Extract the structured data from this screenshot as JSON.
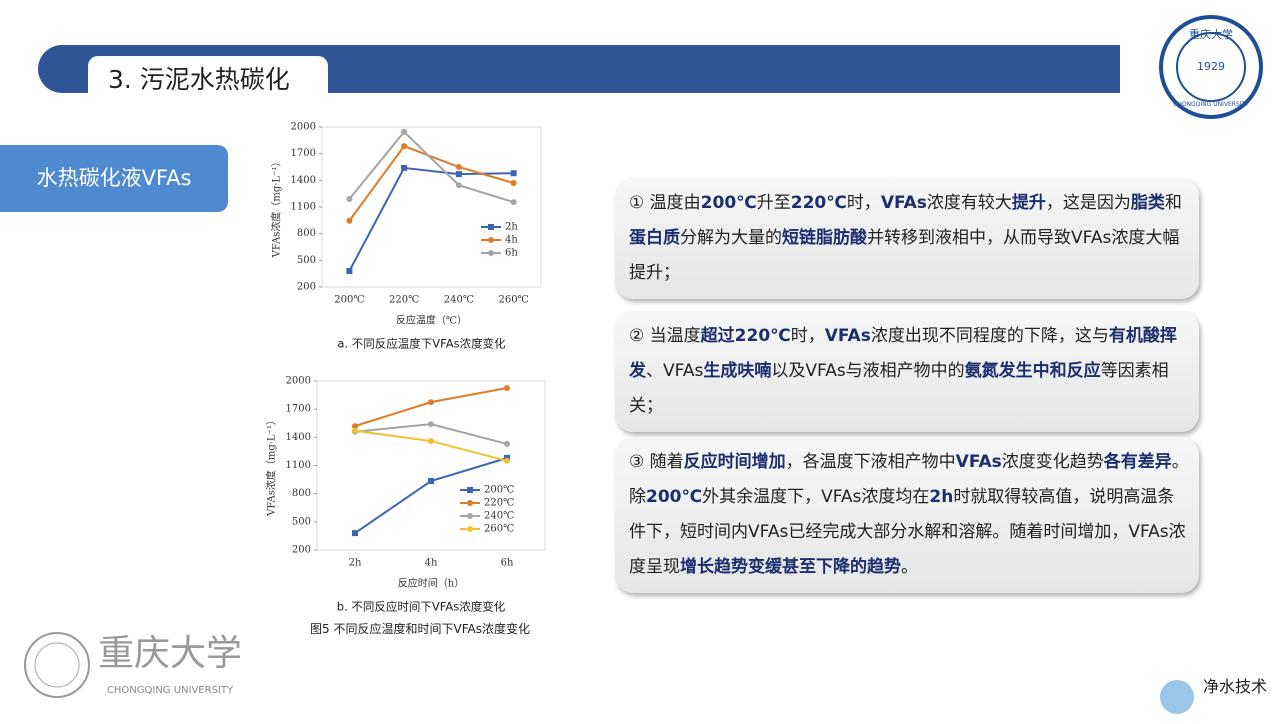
{
  "header": {
    "title": "3. 污泥水热碳化"
  },
  "section_label": "水热碳化液VFAs",
  "chart_data": [
    {
      "type": "line",
      "caption": "a. 不同反应温度下VFAs浓度变化",
      "x_label": "反应温度（℃）",
      "y_label": "VFAs浓度（mg·L⁻¹）",
      "categories": [
        "200℃",
        "220℃",
        "240℃",
        "260℃"
      ],
      "series": [
        {
          "name": "2h",
          "color": "#3a67b0",
          "marker": "square",
          "values": [
            380,
            1540,
            1470,
            1480
          ]
        },
        {
          "name": "4h",
          "color": "#e07b28",
          "marker": "circle",
          "values": [
            945,
            1785,
            1550,
            1370
          ]
        },
        {
          "name": "6h",
          "color": "#a5a5a5",
          "marker": "circle",
          "values": [
            1190,
            1945,
            1345,
            1155
          ]
        }
      ],
      "ylim": [
        200,
        2000
      ],
      "yticks": [
        200,
        500,
        800,
        1100,
        1400,
        1700,
        2000
      ],
      "legend": "right"
    },
    {
      "type": "line",
      "caption": "b. 不同反应时间下VFAs浓度变化",
      "x_label": "反应时间（h）",
      "y_label": "VFAs浓度（mg·L⁻¹）",
      "categories": [
        "2h",
        "4h",
        "6h"
      ],
      "series": [
        {
          "name": "200℃",
          "color": "#3a67b0",
          "marker": "square",
          "values": [
            380,
            935,
            1180
          ]
        },
        {
          "name": "220℃",
          "color": "#e07b28",
          "marker": "circle",
          "values": [
            1520,
            1775,
            1925
          ]
        },
        {
          "name": "240℃",
          "color": "#a5a5a5",
          "marker": "circle",
          "values": [
            1460,
            1540,
            1330
          ]
        },
        {
          "name": "260℃",
          "color": "#f2c12e",
          "marker": "circle",
          "values": [
            1470,
            1360,
            1150
          ]
        }
      ],
      "ylim": [
        200,
        2000
      ],
      "yticks": [
        200,
        500,
        800,
        1100,
        1400,
        1700,
        2000
      ],
      "legend": "lower right"
    }
  ],
  "figure_caption": "图5 不同反应温度和时间下VFAs浓度变化",
  "paragraphs": [
    {
      "segments": [
        {
          "text": "① 温度由",
          "bold": false
        },
        {
          "text": "200℃",
          "bold": true
        },
        {
          "text": "升至",
          "bold": false
        },
        {
          "text": "220℃",
          "bold": true
        },
        {
          "text": "时，",
          "bold": false
        },
        {
          "text": "VFAs",
          "bold": true
        },
        {
          "text": "浓度有较大",
          "bold": false
        },
        {
          "text": "提升",
          "bold": true
        },
        {
          "text": "，这是因为",
          "bold": false
        },
        {
          "text": "脂类",
          "bold": true
        },
        {
          "text": "和",
          "bold": false
        },
        {
          "text": "蛋白质",
          "bold": true
        },
        {
          "text": "分解为大量的",
          "bold": false
        },
        {
          "text": "短链脂肪酸",
          "bold": true
        },
        {
          "text": "并转移到液相中，从而导致VFAs浓度大幅提升；",
          "bold": false
        }
      ]
    },
    {
      "segments": [
        {
          "text": "② 当温度",
          "bold": false
        },
        {
          "text": "超过220℃",
          "bold": true
        },
        {
          "text": "时，",
          "bold": false
        },
        {
          "text": "VFAs",
          "bold": true
        },
        {
          "text": "浓度出现不同程度的下降，这与",
          "bold": false
        },
        {
          "text": "有机酸挥发",
          "bold": true
        },
        {
          "text": "、VFAs",
          "bold": false
        },
        {
          "text": "生成呋喃",
          "bold": true
        },
        {
          "text": "以及VFAs与液相产物中的",
          "bold": false
        },
        {
          "text": "氨氮发生中和反应",
          "bold": true
        },
        {
          "text": "等因素相关；",
          "bold": false
        }
      ]
    },
    {
      "segments": [
        {
          "text": "③ 随着",
          "bold": false
        },
        {
          "text": "反应时间增加",
          "bold": true
        },
        {
          "text": "，各温度下液相产物中",
          "bold": false
        },
        {
          "text": "VFAs",
          "bold": true
        },
        {
          "text": "浓度变化趋势",
          "bold": false
        },
        {
          "text": "各有差异",
          "bold": true
        },
        {
          "text": "。除",
          "bold": false
        },
        {
          "text": "200℃",
          "bold": true
        },
        {
          "text": "外其余温度下，VFAs浓度均在",
          "bold": false
        },
        {
          "text": "2h",
          "bold": true
        },
        {
          "text": "时就取得较高值，说明高温条件下，短时间内VFAs已经完成大部分水解和溶解。随着时间增加，VFAs浓度呈现",
          "bold": false
        },
        {
          "text": "增长趋势变缓甚至下降的趋势",
          "bold": true
        },
        {
          "text": "。",
          "bold": false
        }
      ]
    }
  ],
  "university": {
    "name_cn": "重庆大学",
    "name_en": "CHONGQING UNIVERSITY",
    "year": "1929"
  },
  "brand": "净水技术"
}
